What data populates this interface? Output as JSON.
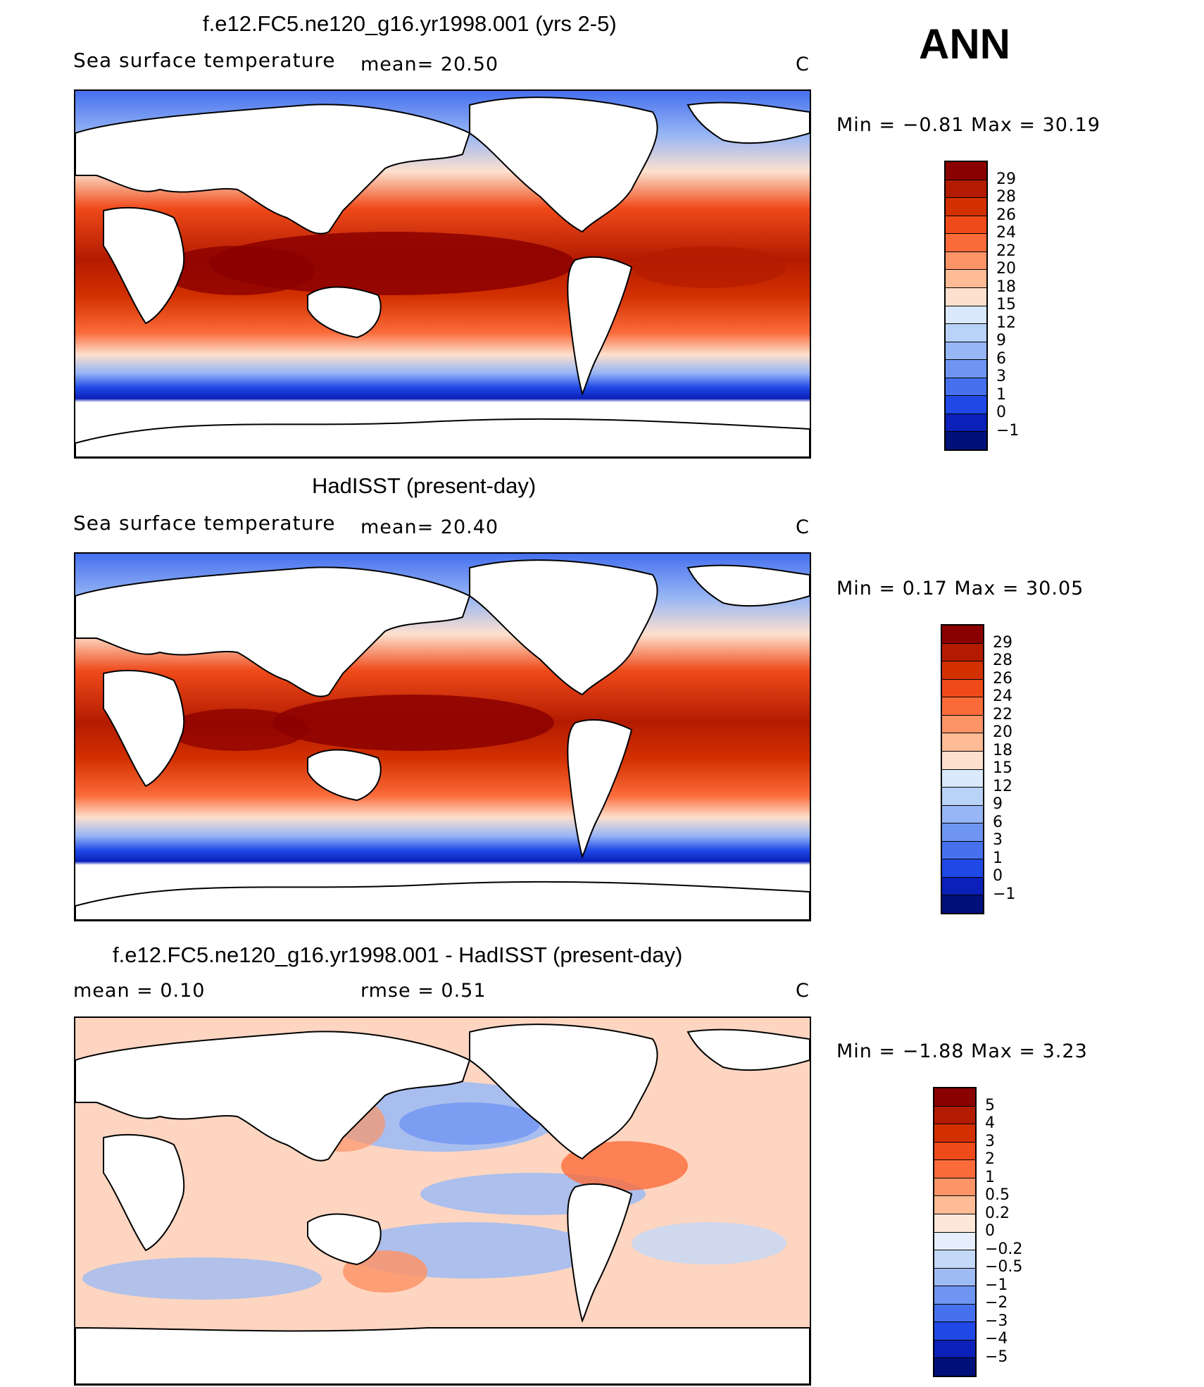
{
  "season": "ANN",
  "panels": [
    {
      "title": "f.e12.FC5.ne120_g16.yr1998.001 (yrs 2-5)",
      "left": "Sea surface temperature",
      "mid": "mean=   20.50",
      "unit": "C",
      "minmax": "Min =   −0.81  Max =    30.19",
      "levels": [
        "29",
        "28",
        "26",
        "24",
        "22",
        "20",
        "18",
        "15",
        "12",
        "9",
        "6",
        "3",
        "1",
        "0",
        "−1"
      ],
      "colors": [
        "#8b0000",
        "#b31b00",
        "#d33000",
        "#ef4a1a",
        "#fb6b3a",
        "#fc9468",
        "#fdbb96",
        "#fde0cd",
        "#dae9fb",
        "#b8d2f8",
        "#97b6f5",
        "#6f95f2",
        "#4670ee",
        "#1f49e6",
        "#0a20b8",
        "#00107a"
      ]
    },
    {
      "title": "HadISST (present-day)",
      "left": "Sea surface temperature",
      "mid": "mean=   20.40",
      "unit": "C",
      "minmax": "Min =    0.17  Max =    30.05",
      "levels": [
        "29",
        "28",
        "26",
        "24",
        "22",
        "20",
        "18",
        "15",
        "12",
        "9",
        "6",
        "3",
        "1",
        "0",
        "−1"
      ],
      "colors": [
        "#8b0000",
        "#b31b00",
        "#d33000",
        "#ef4a1a",
        "#fb6b3a",
        "#fc9468",
        "#fdbb96",
        "#fde0cd",
        "#dae9fb",
        "#b8d2f8",
        "#97b6f5",
        "#6f95f2",
        "#4670ee",
        "#1f49e6",
        "#0a20b8",
        "#00107a"
      ]
    },
    {
      "title": "f.e12.FC5.ne120_g16.yr1998.001 - HadISST (present-day)",
      "left": "mean =    0.10",
      "mid": "rmse =    0.51",
      "unit": "C",
      "minmax": "Min =   −1.88  Max =     3.23",
      "levels": [
        "5",
        "4",
        "3",
        "2",
        "1",
        "0.5",
        "0.2",
        "0",
        "−0.2",
        "−0.5",
        "−1",
        "−2",
        "−3",
        "−4",
        "−5"
      ],
      "colors": [
        "#8b0000",
        "#b31b00",
        "#d33000",
        "#ef4a1a",
        "#fb6b3a",
        "#fc9468",
        "#fdbb96",
        "#fde7d8",
        "#e6eefb",
        "#c4d8f8",
        "#9ebbf4",
        "#6f95f2",
        "#4670ee",
        "#1f49e6",
        "#0a20b8",
        "#00107a"
      ]
    }
  ]
}
